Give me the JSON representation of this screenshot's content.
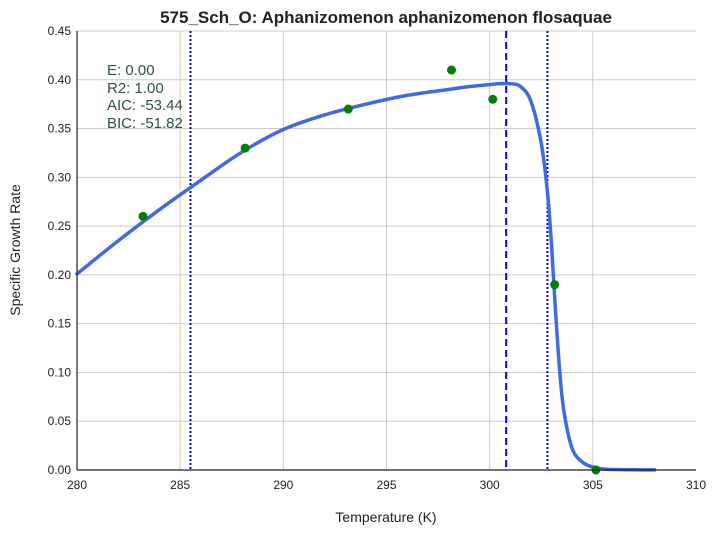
{
  "chart_data": {
    "type": "scatter",
    "title": "575_Sch_O: Aphanizomenon aphanizomenon flosaquae",
    "xlabel": "Temperature (K)",
    "ylabel": "Specific Growth Rate",
    "xlim": [
      280,
      310
    ],
    "ylim": [
      0.0,
      0.45
    ],
    "xticks": [
      "280",
      "285",
      "290",
      "295",
      "300",
      "305",
      "310"
    ],
    "yticks": [
      "0.00",
      "0.05",
      "0.10",
      "0.15",
      "0.20",
      "0.25",
      "0.30",
      "0.35",
      "0.40",
      "0.45"
    ],
    "grid": true,
    "series": [
      {
        "kind": "points",
        "color": "#008000",
        "x": [
          283.2,
          288.15,
          293.15,
          298.15,
          300.15,
          303.15,
          305.15
        ],
        "y": [
          0.26,
          0.33,
          0.37,
          0.41,
          0.38,
          0.19,
          0.0
        ]
      },
      {
        "kind": "fitted-curve",
        "color": "#4169e1",
        "x": [
          280.0,
          282.0,
          284.0,
          286.0,
          288.0,
          290.0,
          292.0,
          294.0,
          296.0,
          298.0,
          299.0,
          300.0,
          300.5,
          301.0,
          301.5,
          302.0,
          302.5,
          302.8,
          303.0,
          303.2,
          303.4,
          303.6,
          304.0,
          304.5,
          305.0,
          305.5,
          306.0,
          307.0,
          308.0
        ],
        "y": [
          0.201,
          0.235,
          0.267,
          0.297,
          0.326,
          0.349,
          0.364,
          0.375,
          0.384,
          0.39,
          0.393,
          0.395,
          0.396,
          0.396,
          0.393,
          0.378,
          0.335,
          0.285,
          0.23,
          0.16,
          0.1,
          0.06,
          0.022,
          0.008,
          0.003,
          0.001,
          0.0005,
          0.0002,
          0.0001
        ]
      }
    ],
    "vlines": [
      {
        "x": 285.5,
        "style": "dotted",
        "color": "#0000ff"
      },
      {
        "x": 300.8,
        "style": "dashed",
        "color": "#0000ff"
      },
      {
        "x": 302.8,
        "style": "dotted",
        "color": "#0000ff"
      }
    ],
    "annotations": [
      "E:  0.00",
      "R2:  1.00",
      "AIC: -53.44",
      "BIC: -51.82"
    ]
  }
}
